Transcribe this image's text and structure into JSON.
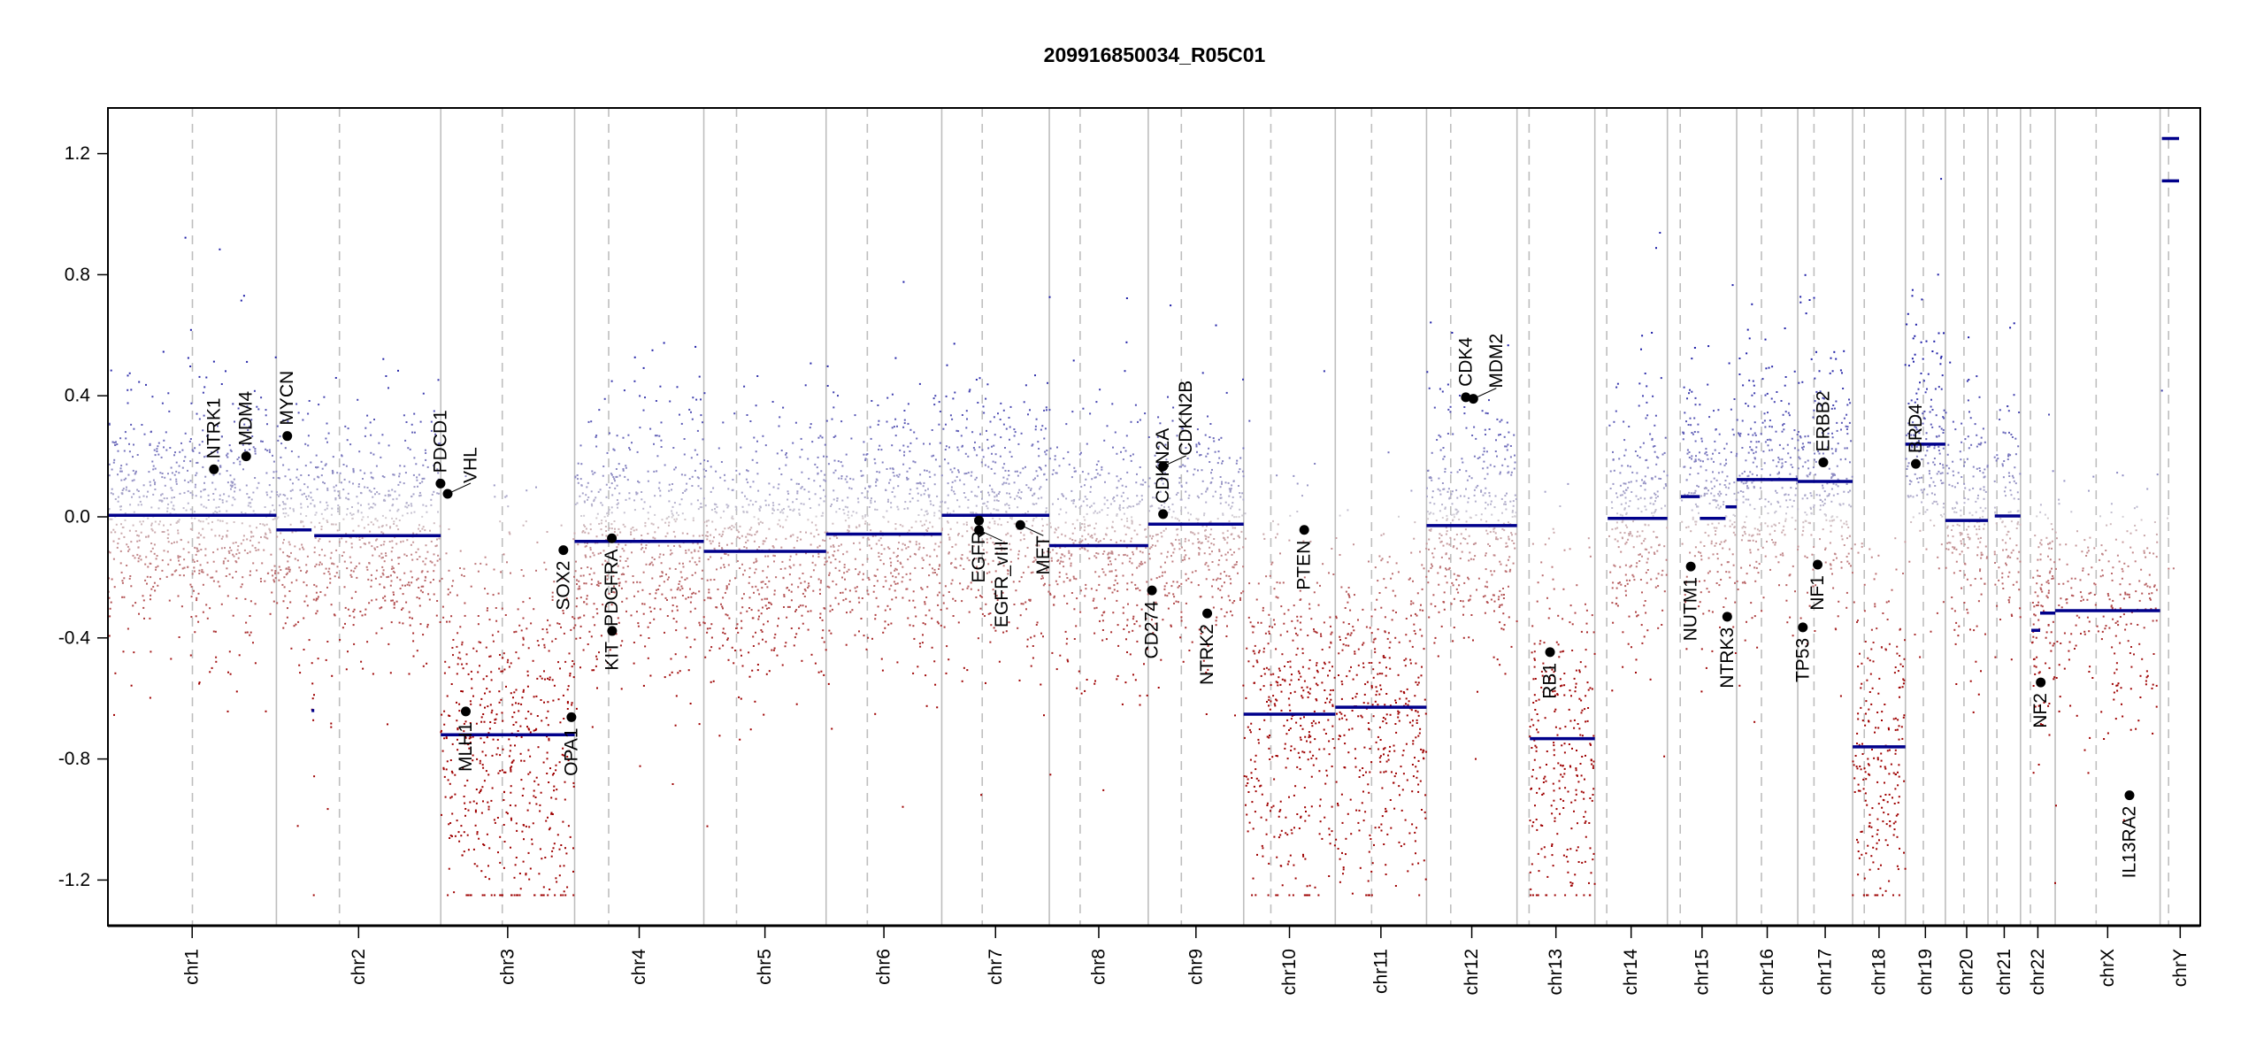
{
  "chart_data": {
    "type": "scatter",
    "title": "209916850034_R05C01",
    "xlabel": "",
    "ylabel": "",
    "ylim": [
      -1.355,
      1.352
    ],
    "yticks": [
      -1.2,
      -0.8,
      -0.4,
      0.0,
      0.4,
      0.8,
      1.2
    ],
    "ytick_labels": [
      "-1.2",
      "-0.8",
      "-0.4",
      "0.0",
      "0.4",
      "0.8",
      "1.2"
    ],
    "grid": false,
    "chromosomes": [
      {
        "name": "chr1",
        "length": 249.25,
        "centromere": 125.0
      },
      {
        "name": "chr2",
        "length": 243.2,
        "centromere": 93.3
      },
      {
        "name": "chr3",
        "length": 198.02,
        "centromere": 91.0
      },
      {
        "name": "chr4",
        "length": 191.15,
        "centromere": 50.4
      },
      {
        "name": "chr5",
        "length": 180.92,
        "centromere": 48.4
      },
      {
        "name": "chr6",
        "length": 171.12,
        "centromere": 61.0
      },
      {
        "name": "chr7",
        "length": 159.14,
        "centromere": 59.9
      },
      {
        "name": "chr8",
        "length": 146.36,
        "centromere": 45.6
      },
      {
        "name": "chr9",
        "length": 141.21,
        "centromere": 49.0
      },
      {
        "name": "chr10",
        "length": 135.53,
        "centromere": 40.2
      },
      {
        "name": "chr11",
        "length": 135.01,
        "centromere": 53.7
      },
      {
        "name": "chr12",
        "length": 133.85,
        "centromere": 35.8
      },
      {
        "name": "chr13",
        "length": 115.17,
        "centromere": 17.9
      },
      {
        "name": "chr14",
        "length": 107.35,
        "centromere": 17.6
      },
      {
        "name": "chr15",
        "length": 102.53,
        "centromere": 19.0
      },
      {
        "name": "chr16",
        "length": 90.35,
        "centromere": 36.6
      },
      {
        "name": "chr17",
        "length": 81.2,
        "centromere": 24.0
      },
      {
        "name": "chr18",
        "length": 78.08,
        "centromere": 17.2
      },
      {
        "name": "chr19",
        "length": 59.13,
        "centromere": 26.5
      },
      {
        "name": "chr20",
        "length": 63.03,
        "centromere": 27.5
      },
      {
        "name": "chr21",
        "length": 48.13,
        "centromere": 13.2
      },
      {
        "name": "chr22",
        "length": 51.3,
        "centromere": 14.7
      },
      {
        "name": "chrX",
        "length": 155.27,
        "centromere": 60.6
      },
      {
        "name": "chrY",
        "length": 59.37,
        "centromere": 12.5
      }
    ],
    "segments": [
      {
        "chr": "chr1",
        "start": 0,
        "end": 249.25,
        "value": 0.005
      },
      {
        "chr": "chr2",
        "start": 0,
        "end": 52,
        "value": -0.043
      },
      {
        "chr": "chr2",
        "start": 52,
        "end": 56,
        "value": -0.64
      },
      {
        "chr": "chr2",
        "start": 56,
        "end": 243.2,
        "value": -0.062
      },
      {
        "chr": "chr3",
        "start": 0,
        "end": 198.02,
        "value": -0.72
      },
      {
        "chr": "chr4",
        "start": 0,
        "end": 191.15,
        "value": -0.081
      },
      {
        "chr": "chr5",
        "start": 0,
        "end": 180.92,
        "value": -0.114
      },
      {
        "chr": "chr6",
        "start": 0,
        "end": 171.12,
        "value": -0.057
      },
      {
        "chr": "chr7",
        "start": 0,
        "end": 159.14,
        "value": 0.005
      },
      {
        "chr": "chr8",
        "start": 0,
        "end": 146.36,
        "value": -0.095
      },
      {
        "chr": "chr9",
        "start": 0,
        "end": 141.21,
        "value": -0.024
      },
      {
        "chr": "chr10",
        "start": 0,
        "end": 135.53,
        "value": -0.652
      },
      {
        "chr": "chr11",
        "start": 0,
        "end": 135.01,
        "value": -0.629
      },
      {
        "chr": "chr12",
        "start": 0,
        "end": 133.85,
        "value": -0.029
      },
      {
        "chr": "chr13",
        "start": 19,
        "end": 115.17,
        "value": -0.733
      },
      {
        "chr": "chr14",
        "start": 19,
        "end": 107.35,
        "value": -0.005
      },
      {
        "chr": "chr15",
        "start": 20,
        "end": 48,
        "value": 0.067
      },
      {
        "chr": "chr15",
        "start": 48,
        "end": 86,
        "value": -0.005
      },
      {
        "chr": "chr15",
        "start": 86,
        "end": 102.53,
        "value": 0.033
      },
      {
        "chr": "chr16",
        "start": 0,
        "end": 90.35,
        "value": 0.123
      },
      {
        "chr": "chr17",
        "start": 0,
        "end": 81.2,
        "value": 0.117
      },
      {
        "chr": "chr18",
        "start": 0,
        "end": 78.08,
        "value": -0.76
      },
      {
        "chr": "chr19",
        "start": 0,
        "end": 59.13,
        "value": 0.24
      },
      {
        "chr": "chr20",
        "start": 0,
        "end": 63.03,
        "value": -0.012
      },
      {
        "chr": "chr21",
        "start": 10,
        "end": 48.13,
        "value": 0.003
      },
      {
        "chr": "chr22",
        "start": 16,
        "end": 29,
        "value": -0.375
      },
      {
        "chr": "chr22",
        "start": 29,
        "end": 51.3,
        "value": -0.318
      },
      {
        "chr": "chrX",
        "start": 0,
        "end": 155.27,
        "value": -0.31
      },
      {
        "chr": "chrY",
        "start": 2.6,
        "end": 28,
        "value": 1.25
      },
      {
        "chr": "chrY",
        "start": 2.6,
        "end": 28,
        "value": 1.11
      }
    ],
    "genes": [
      {
        "name": "NTRK1",
        "chr": "chr1",
        "pos": 156.8,
        "value": 0.157
      },
      {
        "name": "MDM4",
        "chr": "chr1",
        "pos": 204.5,
        "value": 0.2
      },
      {
        "name": "MYCN",
        "chr": "chr2",
        "pos": 16.1,
        "value": 0.267
      },
      {
        "name": "PDCD1",
        "chr": "chr2",
        "pos": 242.8,
        "value": 0.11
      },
      {
        "name": "VHL",
        "chr": "chr3",
        "pos": 10.2,
        "value": 0.076
      },
      {
        "name": "MLH1",
        "chr": "chr3",
        "pos": 37.0,
        "value": -0.643
      },
      {
        "name": "SOX2",
        "chr": "chr3",
        "pos": 181.4,
        "value": -0.11
      },
      {
        "name": "OPA1",
        "chr": "chr3",
        "pos": 193.3,
        "value": -0.662
      },
      {
        "name": "PDGFRA",
        "chr": "chr4",
        "pos": 55.1,
        "value": -0.071
      },
      {
        "name": "KIT",
        "chr": "chr4",
        "pos": 55.5,
        "value": -0.377
      },
      {
        "name": "EGFR",
        "chr": "chr7",
        "pos": 55.1,
        "value": -0.012
      },
      {
        "name": "EGFR_vIII",
        "chr": "chr7",
        "pos": 55.2,
        "value": -0.044
      },
      {
        "name": "MET",
        "chr": "chr7",
        "pos": 116.3,
        "value": -0.027
      },
      {
        "name": "CD274",
        "chr": "chr9",
        "pos": 5.5,
        "value": -0.243
      },
      {
        "name": "CDKN2A",
        "chr": "chr9",
        "pos": 21.97,
        "value": 0.009
      },
      {
        "name": "CDKN2B",
        "chr": "chr9",
        "pos": 22.0,
        "value": 0.167
      },
      {
        "name": "NTRK2",
        "chr": "chr9",
        "pos": 87.3,
        "value": -0.319
      },
      {
        "name": "PTEN",
        "chr": "chr10",
        "pos": 89.6,
        "value": -0.043
      },
      {
        "name": "CDK4",
        "chr": "chr12",
        "pos": 58.1,
        "value": 0.395
      },
      {
        "name": "MDM2",
        "chr": "chr12",
        "pos": 69.2,
        "value": 0.39
      },
      {
        "name": "RB1",
        "chr": "chr13",
        "pos": 48.9,
        "value": -0.447
      },
      {
        "name": "NUTM1",
        "chr": "chr15",
        "pos": 34.6,
        "value": -0.164
      },
      {
        "name": "NTRK3",
        "chr": "chr15",
        "pos": 88.5,
        "value": -0.33
      },
      {
        "name": "TP53",
        "chr": "chr17",
        "pos": 7.5,
        "value": -0.365
      },
      {
        "name": "NF1",
        "chr": "chr17",
        "pos": 29.4,
        "value": -0.158
      },
      {
        "name": "ERBB2",
        "chr": "chr17",
        "pos": 37.8,
        "value": 0.18
      },
      {
        "name": "BRD4",
        "chr": "chr19",
        "pos": 15.4,
        "value": 0.175
      },
      {
        "name": "NF2",
        "chr": "chr22",
        "pos": 29.9,
        "value": -0.547
      },
      {
        "name": "IL13RA2",
        "chr": "chrX",
        "pos": 109.9,
        "value": -0.92
      }
    ],
    "colors": {
      "segment": "#00008b",
      "gain": "#1c1ca6",
      "neutral": "#d4d0d4",
      "loss": "#9e0000",
      "chrom_boundary": "#bebebe",
      "centromere": "#bebebe",
      "gene_marker": "#000000"
    }
  }
}
